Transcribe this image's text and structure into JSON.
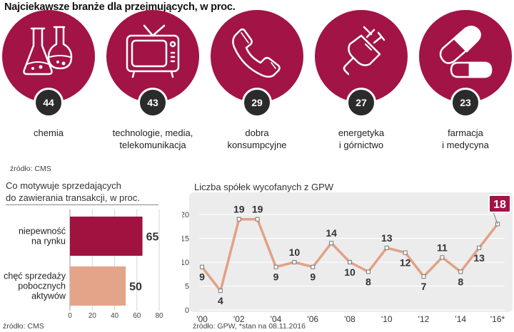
{
  "title": "Najciekawsze branże dla przejmujących, w proc.",
  "industries": [
    {
      "icon": "flask-icon",
      "value": "44",
      "label": "chemia"
    },
    {
      "icon": "tv-icon",
      "value": "43",
      "label": "technologie, media,\ntelekomunikacja"
    },
    {
      "icon": "phone-icon",
      "value": "29",
      "label": "dobra\nkonsumpcyjne"
    },
    {
      "icon": "plug-icon",
      "value": "27",
      "label": "energetyka\ni górnictwo"
    },
    {
      "icon": "pills-icon",
      "value": "23",
      "label": "farmacja\ni medycyna"
    }
  ],
  "source_top": "źródło: CMS",
  "motives": {
    "title": "Co motywuje sprzedających\ndo zawierania transakcji, w proc.",
    "source": "źródło: CMS"
  },
  "delisted": {
    "title": "Liczba spółek wycofanych z GPW",
    "source": "źródło: GPW, *stan na 08.11.2016"
  },
  "colors": {
    "accent": "#a21346",
    "bar_primary": "#a0123f",
    "bar_secondary": "#e3a48a",
    "line": "#e2a185",
    "panel": "#ececec"
  },
  "chart_data": [
    {
      "type": "bar",
      "orientation": "horizontal",
      "title": "Co motywuje sprzedających do zawierania transakcji, w proc.",
      "categories": [
        "niepewność\nna rynku",
        "chęć sprzedaży\npobocznych\naktywów"
      ],
      "values": [
        65,
        50
      ],
      "xlim": [
        0,
        80
      ],
      "xticks": [
        0,
        20,
        40,
        60,
        80
      ]
    },
    {
      "type": "line",
      "title": "Liczba spółek wycofanych z GPW",
      "x": [
        2000,
        2001,
        2002,
        2003,
        2004,
        2005,
        2006,
        2007,
        2008,
        2009,
        2010,
        2011,
        2012,
        2013,
        2014,
        2015,
        2016
      ],
      "values": [
        9,
        4,
        19,
        19,
        9,
        10,
        9,
        14,
        10,
        8,
        13,
        12,
        7,
        11,
        8,
        13,
        18
      ],
      "xtick_labels": [
        "'00",
        "'02",
        "'04",
        "'06",
        "'08",
        "'10",
        "'12",
        "'14",
        "'16*"
      ],
      "ylim": [
        0,
        20
      ],
      "yticks": [
        0,
        5,
        10,
        15,
        20
      ],
      "grid": true,
      "highlight_last": true
    }
  ]
}
